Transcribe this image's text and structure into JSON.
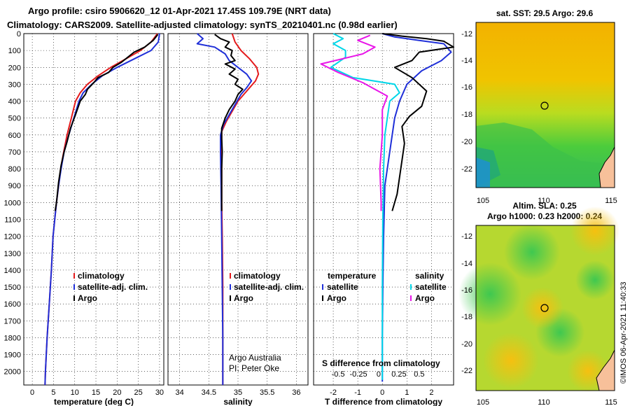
{
  "header": {
    "line1": "Argo profile: csiro 5906620_12 01-Apr-2021 17.45S 109.79E (NRT data)",
    "line2": "Climatology: CARS2009. Satellite-adjusted climatology: synTS_20210401.nc (0.98d earlier)"
  },
  "colors": {
    "climatology": "#e41a1c",
    "satellite": "#1f2fd8",
    "argo": "#000000",
    "sat_t": "#1f2fd8",
    "sat_s": "#00d6e8",
    "argo_s": "#e815e8"
  },
  "chart_data": [
    {
      "type": "line",
      "id": "temperature",
      "xlabel": "temperature (deg C)",
      "ylabel": "",
      "xlim": [
        -2,
        31
      ],
      "ylim": [
        0,
        2080
      ],
      "xticks": [
        0,
        5,
        10,
        15,
        20,
        25,
        30
      ],
      "yticks": [
        0,
        100,
        200,
        300,
        400,
        500,
        600,
        700,
        800,
        900,
        1000,
        1100,
        1200,
        1300,
        1400,
        1500,
        1600,
        1700,
        1800,
        1900,
        2000
      ],
      "legend": [
        "climatology",
        "satellite-adj. clim.",
        "Argo"
      ],
      "series": [
        {
          "name": "climatology",
          "color": "#e41a1c",
          "points": [
            [
              29.5,
              0
            ],
            [
              28,
              50
            ],
            [
              25.5,
              100
            ],
            [
              22,
              150
            ],
            [
              18.5,
              200
            ],
            [
              15.5,
              250
            ],
            [
              13,
              300
            ],
            [
              11.3,
              350
            ],
            [
              10.2,
              400
            ],
            [
              9.2,
              500
            ],
            [
              8.2,
              600
            ],
            [
              7.4,
              700
            ],
            [
              6.7,
              800
            ],
            [
              6.2,
              900
            ],
            [
              5.7,
              1000
            ],
            [
              5.3,
              1100
            ],
            [
              4.9,
              1200
            ],
            [
              4.5,
              1400
            ],
            [
              4,
              1600
            ],
            [
              3.5,
              1800
            ],
            [
              3.1,
              2000
            ],
            [
              3,
              2080
            ]
          ]
        },
        {
          "name": "satellite-adj. clim.",
          "color": "#1f2fd8",
          "points": [
            [
              30,
              0
            ],
            [
              29.7,
              50
            ],
            [
              28,
              100
            ],
            [
              24,
              150
            ],
            [
              20,
              200
            ],
            [
              16.5,
              250
            ],
            [
              14,
              300
            ],
            [
              12,
              350
            ],
            [
              11,
              400
            ],
            [
              9.8,
              500
            ],
            [
              8.6,
              600
            ],
            [
              7.5,
              700
            ],
            [
              6.8,
              800
            ],
            [
              6.2,
              900
            ],
            [
              5.7,
              1000
            ],
            [
              5.3,
              1100
            ],
            [
              4.9,
              1200
            ],
            [
              4.5,
              1400
            ],
            [
              4,
              1600
            ],
            [
              3.5,
              1800
            ],
            [
              3.1,
              2000
            ],
            [
              3,
              2080
            ]
          ]
        },
        {
          "name": "Argo",
          "color": "#000000",
          "points": [
            [
              29.6,
              5
            ],
            [
              28.5,
              40
            ],
            [
              26.5,
              80
            ],
            [
              24,
              110
            ],
            [
              22.5,
              140
            ],
            [
              21,
              170
            ],
            [
              19,
              200
            ],
            [
              18,
              230
            ],
            [
              15.5,
              260
            ],
            [
              14.5,
              290
            ],
            [
              13,
              330
            ],
            [
              12.5,
              360
            ],
            [
              11.3,
              400
            ],
            [
              10.2,
              480
            ],
            [
              9,
              560
            ],
            [
              8.2,
              640
            ],
            [
              7.5,
              700
            ],
            [
              6.8,
              780
            ],
            [
              6.2,
              880
            ],
            [
              5.7,
              1000
            ],
            [
              5.4,
              1050
            ]
          ]
        }
      ]
    },
    {
      "type": "line",
      "id": "salinity",
      "xlabel": "salinity",
      "xlim": [
        33.8,
        36.2
      ],
      "ylim": [
        0,
        2080
      ],
      "xticks": [
        34,
        34.5,
        35,
        35.5,
        36
      ],
      "xticklabels": [
        "34",
        "34.5",
        "35",
        "35.5",
        "36"
      ],
      "legend": [
        "climatology",
        "satellite-adj. clim.",
        "Argo"
      ],
      "annotations": [
        "Argo Australia",
        "PI: Peter Oke"
      ],
      "series": [
        {
          "name": "climatology",
          "color": "#e41a1c",
          "points": [
            [
              34.9,
              0
            ],
            [
              34.95,
              50
            ],
            [
              35.05,
              100
            ],
            [
              35.2,
              150
            ],
            [
              35.32,
              200
            ],
            [
              35.35,
              240
            ],
            [
              35.3,
              280
            ],
            [
              35.2,
              320
            ],
            [
              35.1,
              360
            ],
            [
              35,
              400
            ],
            [
              34.9,
              460
            ],
            [
              34.8,
              520
            ],
            [
              34.72,
              580
            ],
            [
              34.72,
              650
            ],
            [
              34.72,
              800
            ],
            [
              34.72,
              1000
            ],
            [
              34.73,
              1200
            ],
            [
              34.74,
              1500
            ],
            [
              34.74,
              1800
            ],
            [
              34.74,
              2080
            ]
          ]
        },
        {
          "name": "satellite-adj. clim.",
          "color": "#1f2fd8",
          "points": [
            [
              34.3,
              0
            ],
            [
              34.4,
              30
            ],
            [
              34.3,
              60
            ],
            [
              34.6,
              80
            ],
            [
              34.78,
              120
            ],
            [
              34.85,
              160
            ],
            [
              35,
              200
            ],
            [
              35.15,
              240
            ],
            [
              35.23,
              280
            ],
            [
              35.15,
              320
            ],
            [
              35.05,
              360
            ],
            [
              34.95,
              420
            ],
            [
              34.85,
              480
            ],
            [
              34.75,
              540
            ],
            [
              34.7,
              600
            ],
            [
              34.7,
              700
            ],
            [
              34.71,
              900
            ],
            [
              34.72,
              1200
            ],
            [
              34.73,
              1500
            ],
            [
              34.74,
              1800
            ],
            [
              34.74,
              2080
            ]
          ]
        },
        {
          "name": "Argo",
          "color": "#000000",
          "points": [
            [
              34.6,
              5
            ],
            [
              34.7,
              30
            ],
            [
              34.85,
              50
            ],
            [
              34.78,
              80
            ],
            [
              34.9,
              100
            ],
            [
              34.88,
              130
            ],
            [
              34.95,
              160
            ],
            [
              34.78,
              180
            ],
            [
              34.95,
              210
            ],
            [
              34.85,
              240
            ],
            [
              35,
              270
            ],
            [
              34.95,
              300
            ],
            [
              35.08,
              330
            ],
            [
              35,
              360
            ],
            [
              34.95,
              400
            ],
            [
              34.85,
              450
            ],
            [
              34.78,
              500
            ],
            [
              34.72,
              560
            ],
            [
              34.72,
              620
            ],
            [
              34.73,
              700
            ],
            [
              34.72,
              800
            ],
            [
              34.72,
              900
            ],
            [
              34.72,
              1000
            ],
            [
              34.72,
              1050
            ]
          ]
        }
      ]
    },
    {
      "type": "line",
      "id": "tdiff",
      "xlabel": "T difference from climatology",
      "xlabel2": "S difference from climatology",
      "xlim": [
        -2.8,
        2.9
      ],
      "ylim": [
        0,
        2080
      ],
      "xticks": [
        -2,
        -1,
        0,
        1,
        2
      ],
      "xticks2": [
        -0.5,
        -0.25,
        0,
        0.25,
        0.5
      ],
      "xticklabels2": [
        "-0.5",
        "-0.25",
        "0",
        "0.25",
        "0.5"
      ],
      "legend_t_title": "temperature",
      "legend_s_title": "salinity",
      "legend": [
        "satellite",
        "Argo"
      ],
      "series": [
        {
          "name": "T satellite",
          "color": "#1f2fd8",
          "points": [
            [
              0,
              0
            ],
            [
              0.5,
              20
            ],
            [
              1.5,
              40
            ],
            [
              2.5,
              60
            ],
            [
              2.8,
              110
            ],
            [
              2.4,
              160
            ],
            [
              1.6,
              220
            ],
            [
              1,
              300
            ],
            [
              0.7,
              400
            ],
            [
              0.5,
              500
            ],
            [
              0.4,
              600
            ],
            [
              0.3,
              700
            ],
            [
              0.2,
              800
            ],
            [
              0.1,
              900
            ],
            [
              0.05,
              1200
            ],
            [
              0.02,
              1500
            ],
            [
              0,
              1800
            ],
            [
              0,
              2060
            ]
          ]
        },
        {
          "name": "T Argo",
          "color": "#000000",
          "points": [
            [
              0,
              0
            ],
            [
              0.8,
              15
            ],
            [
              1.8,
              30
            ],
            [
              2.5,
              45
            ],
            [
              2.9,
              80
            ],
            [
              1.5,
              110
            ],
            [
              1.2,
              160
            ],
            [
              0.5,
              200
            ],
            [
              1.2,
              260
            ],
            [
              1.8,
              340
            ],
            [
              1.6,
              430
            ],
            [
              1.1,
              490
            ],
            [
              0.8,
              550
            ],
            [
              0.9,
              650
            ],
            [
              0.8,
              750
            ],
            [
              0.7,
              850
            ],
            [
              0.6,
              950
            ],
            [
              0.4,
              1050
            ]
          ]
        },
        {
          "name": "S satellite",
          "color": "#00d6e8",
          "points": [
            [
              -2,
              0
            ],
            [
              -1.6,
              30
            ],
            [
              -2,
              60
            ],
            [
              -1.5,
              100
            ],
            [
              -1.5,
              140
            ],
            [
              -2.1,
              200
            ],
            [
              -1.2,
              260
            ],
            [
              0.5,
              300
            ],
            [
              0.7,
              350
            ],
            [
              0.3,
              400
            ],
            [
              0.2,
              500
            ],
            [
              0.1,
              600
            ],
            [
              0.05,
              800
            ],
            [
              0.02,
              1100
            ],
            [
              0,
              1500
            ],
            [
              0,
              2050
            ]
          ]
        },
        {
          "name": "S Argo",
          "color": "#e815e8",
          "points": [
            [
              -0.5,
              10
            ],
            [
              -1,
              40
            ],
            [
              -0.3,
              80
            ],
            [
              -0.8,
              120
            ],
            [
              -2.5,
              180
            ],
            [
              -1.8,
              230
            ],
            [
              -0.8,
              290
            ],
            [
              0.2,
              370
            ],
            [
              0,
              450
            ],
            [
              0,
              600
            ],
            [
              -0.1,
              800
            ],
            [
              -0.05,
              1000
            ],
            [
              -0.05,
              1050
            ]
          ]
        }
      ]
    }
  ],
  "maps": {
    "sst": {
      "title": "sat. SST: 29.5 Argo: 29.6",
      "xticks": [
        "105",
        "110",
        "115"
      ],
      "yticks": [
        "-12",
        "-14",
        "-16",
        "-18",
        "-20",
        "-22"
      ]
    },
    "sla": {
      "title1": "Altim. SLA: 0.25",
      "title2": "Argo h1000: 0.23 h2000: 0.24",
      "xticks": [
        "105",
        "110",
        "115"
      ],
      "yticks": [
        "-12",
        "-14",
        "-16",
        "-18",
        "-20",
        "-22"
      ]
    }
  },
  "credit": "©IMOS 06-Apr-2021 11:40:33"
}
